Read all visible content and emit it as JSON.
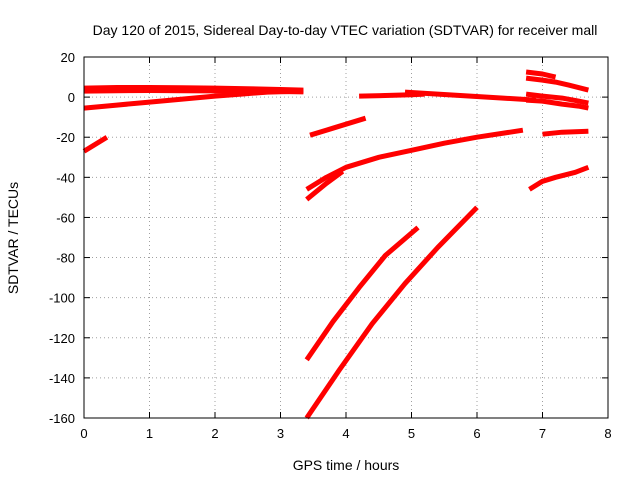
{
  "chart_data": {
    "type": "scatter",
    "title": "Day 120 of 2015, Sidereal Day-to-day VTEC variation (SDTVAR) for receiver mall",
    "xlabel": "GPS time / hours",
    "ylabel": "SDTVAR / TECUs",
    "xlim": [
      0,
      8
    ],
    "ylim": [
      -160,
      20
    ],
    "xticks": [
      "0",
      "1",
      "2",
      "3",
      "4",
      "5",
      "6",
      "7",
      "8"
    ],
    "yticks": [
      "20",
      "0",
      "-20",
      "-40",
      "-60",
      "-80",
      "-100",
      "-120",
      "-140",
      "-160"
    ],
    "grid": true,
    "color": "#ff0000",
    "series": [
      {
        "x": [
          0.0,
          0.5,
          1.0,
          1.5,
          2.0,
          2.5,
          3.0,
          3.35
        ],
        "y": [
          4.5,
          4.8,
          4.8,
          4.7,
          4.5,
          4.2,
          3.8,
          3.5
        ]
      },
      {
        "x": [
          0.0,
          0.5,
          1.0,
          1.5,
          2.0,
          2.5,
          3.0,
          3.35
        ],
        "y": [
          3.0,
          3.2,
          3.3,
          3.2,
          3.1,
          3.0,
          2.8,
          2.6
        ]
      },
      {
        "x": [
          0.0,
          0.5,
          1.0,
          1.5,
          2.0,
          2.4,
          2.8,
          3.35
        ],
        "y": [
          -5.5,
          -4.0,
          -2.5,
          -1.0,
          0.5,
          1.5,
          2.5,
          3.0
        ]
      },
      {
        "x": [
          0.0,
          0.15,
          0.35
        ],
        "y": [
          -27.0,
          -24.0,
          -20.0
        ]
      },
      {
        "x": [
          3.45,
          3.8,
          4.1,
          4.3
        ],
        "y": [
          -19.0,
          -15.5,
          -12.5,
          -10.5
        ]
      },
      {
        "x": [
          4.2,
          4.6,
          5.0,
          5.2
        ],
        "y": [
          0.5,
          0.8,
          1.2,
          1.5
        ]
      },
      {
        "x": [
          4.9,
          5.4,
          5.9,
          6.4,
          6.9
        ],
        "y": [
          2.5,
          1.5,
          0.5,
          -0.5,
          -1.5
        ]
      },
      {
        "x": [
          3.4,
          3.7,
          4.0,
          4.5,
          5.0,
          5.5,
          6.0,
          6.7
        ],
        "y": [
          -46.0,
          -40.0,
          -35.0,
          -30.0,
          -26.5,
          -23.0,
          -20.0,
          -16.5
        ]
      },
      {
        "x": [
          3.4,
          3.7,
          3.95
        ],
        "y": [
          -51.0,
          -43.0,
          -37.0
        ]
      },
      {
        "x": [
          3.4,
          3.8,
          4.2,
          4.6,
          5.1
        ],
        "y": [
          -131.0,
          -112.0,
          -95.0,
          -79.0,
          -65.0
        ]
      },
      {
        "x": [
          3.4,
          3.9,
          4.4,
          4.9,
          5.4,
          6.0
        ],
        "y": [
          -160.0,
          -136.0,
          -113.0,
          -93.0,
          -75.0,
          -55.0
        ]
      },
      {
        "x": [
          6.75,
          7.0,
          7.2
        ],
        "y": [
          12.5,
          11.5,
          10.0
        ]
      },
      {
        "x": [
          6.75,
          7.0,
          7.2,
          7.4,
          7.7
        ],
        "y": [
          9.5,
          8.5,
          7.5,
          6.0,
          3.5
        ]
      },
      {
        "x": [
          6.75,
          7.0,
          7.3,
          7.55,
          7.7
        ],
        "y": [
          1.5,
          0.5,
          -0.5,
          -2.0,
          -3.0
        ]
      },
      {
        "x": [
          6.75,
          7.0,
          7.3,
          7.55,
          7.7
        ],
        "y": [
          -1.5,
          -2.0,
          -3.5,
          -4.5,
          -5.5
        ]
      },
      {
        "x": [
          7.0,
          7.3,
          7.7
        ],
        "y": [
          -18.5,
          -17.5,
          -17.0
        ]
      },
      {
        "x": [
          6.8,
          7.0,
          7.2,
          7.5,
          7.7
        ],
        "y": [
          -46.0,
          -42.0,
          -40.0,
          -37.5,
          -35.0
        ]
      }
    ]
  }
}
